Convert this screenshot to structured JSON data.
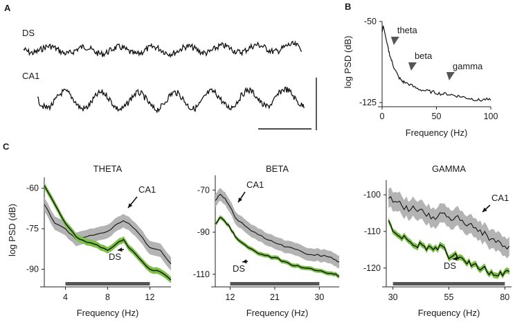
{
  "panels": {
    "a": {
      "letter": "A",
      "ds_label": "DS",
      "ca1_label": "CA1"
    },
    "b": {
      "letter": "B"
    },
    "c": {
      "letter": "C"
    }
  },
  "colors": {
    "ds_line": "#111111",
    "ds_band": "#7ac143",
    "ca1_line": "#111111",
    "ca1_band": "#b3b3b3",
    "bar": "#555555"
  },
  "chart_data": [
    {
      "type": "line",
      "id": "psd",
      "title": "",
      "xlabel": "Frequency (Hz)",
      "ylabel": "log PSD (dB)",
      "xlim": [
        0,
        100
      ],
      "ylim": [
        -125,
        -50
      ],
      "xticks": [
        "0",
        "50",
        "100"
      ],
      "yticks": [
        "-50",
        "-125"
      ],
      "x": [
        0,
        1,
        2,
        3,
        4,
        5,
        6,
        8,
        10,
        12,
        15,
        18,
        20,
        25,
        30,
        35,
        40,
        45,
        50,
        55,
        60,
        65,
        70,
        75,
        80,
        85,
        90,
        95,
        100
      ],
      "values": [
        -60,
        -54,
        -58,
        -63,
        -68,
        -72,
        -77,
        -84,
        -90,
        -95,
        -101,
        -105,
        -106,
        -108,
        -111,
        -113,
        -114,
        -115,
        -116,
        -117,
        -117,
        -118,
        -119,
        -120,
        -121,
        -122,
        -123,
        -122,
        -123
      ],
      "annotations": [
        {
          "label": "theta",
          "x": 12
        },
        {
          "label": "beta",
          "x": 28
        },
        {
          "label": "gamma",
          "x": 63
        }
      ]
    },
    {
      "type": "line",
      "id": "theta",
      "title": "THETA",
      "xlabel": "Frequency (Hz)",
      "ylabel": "log PSD (dB)",
      "xlim": [
        2,
        14
      ],
      "ylim": [
        -95,
        -56
      ],
      "xticks": [
        4,
        8,
        12
      ],
      "yticks": [
        -60,
        -75,
        -90
      ],
      "bar_range": [
        4,
        12
      ],
      "x": [
        2,
        3,
        4,
        5,
        6,
        7,
        8,
        9,
        9.5,
        10,
        11,
        12,
        13,
        14
      ],
      "series": [
        {
          "name": "CA1",
          "values": [
            -66,
            -73,
            -75,
            -79,
            -78,
            -77,
            -76,
            -73,
            -72,
            -73,
            -77,
            -82,
            -83,
            -88
          ],
          "spread": 2.5
        },
        {
          "name": "DS",
          "values": [
            -59,
            -66,
            -73,
            -78,
            -80,
            -81,
            -83,
            -80,
            -79,
            -82,
            -86,
            -90,
            -91,
            -94
          ],
          "spread": 1.2
        }
      ],
      "series_labels": [
        "CA1",
        "DS"
      ]
    },
    {
      "type": "line",
      "id": "beta",
      "title": "BETA",
      "xlabel": "Frequency (Hz)",
      "ylabel": "",
      "xlim": [
        9,
        34
      ],
      "ylim": [
        -114,
        -63
      ],
      "xticks": [
        12,
        21,
        30
      ],
      "yticks": [
        -70,
        -90,
        -110
      ],
      "bar_range": [
        12,
        30
      ],
      "x": [
        9,
        10,
        11,
        12,
        13,
        15,
        17,
        19,
        21,
        23,
        25,
        27,
        29,
        31,
        33,
        34
      ],
      "series": [
        {
          "name": "CA1",
          "values": [
            -75,
            -72,
            -74,
            -78,
            -83,
            -87,
            -90,
            -93,
            -95,
            -97,
            -98,
            -100,
            -101,
            -101,
            -103,
            -104
          ],
          "spread": 3
        },
        {
          "name": "DS",
          "values": [
            -86,
            -83,
            -85,
            -88,
            -92,
            -96,
            -99,
            -101,
            -102,
            -104,
            -106,
            -107,
            -108,
            -109,
            -110,
            -111
          ],
          "spread": 1
        }
      ],
      "series_labels": [
        "CA1",
        "DS"
      ]
    },
    {
      "type": "line",
      "id": "gamma",
      "title": "GAMMA",
      "xlabel": "Frequency (Hz)",
      "ylabel": "",
      "xlim": [
        27,
        83
      ],
      "ylim": [
        -124,
        -96
      ],
      "xticks": [
        30,
        55,
        80
      ],
      "yticks": [
        -100,
        -110,
        -120
      ],
      "bar_range": [
        30,
        80
      ],
      "x": [
        28,
        30,
        32,
        34,
        36,
        38,
        40,
        42,
        44,
        46,
        48,
        50,
        52,
        54,
        56,
        58,
        60,
        62,
        64,
        66,
        68,
        70,
        72,
        74,
        76,
        78,
        80,
        82
      ],
      "series": [
        {
          "name": "CA1",
          "values": [
            -101,
            -102,
            -102,
            -103,
            -103,
            -104,
            -104,
            -104,
            -105,
            -105,
            -106,
            -106,
            -105,
            -106,
            -107,
            -106,
            -107,
            -108,
            -108,
            -109,
            -110,
            -111,
            -111,
            -112,
            -113,
            -113,
            -114,
            -114
          ],
          "spread": 2.6
        },
        {
          "name": "DS",
          "values": [
            -107,
            -110,
            -111,
            -112,
            -112,
            -113,
            -114,
            -113,
            -114,
            -114,
            -115,
            -115,
            -114,
            -116,
            -117,
            -116,
            -117,
            -118,
            -118,
            -119,
            -120,
            -120,
            -121,
            -121,
            -122,
            -121,
            -121,
            -121
          ],
          "spread": 0.8
        }
      ],
      "series_labels": [
        "CA1",
        "DS"
      ]
    }
  ]
}
